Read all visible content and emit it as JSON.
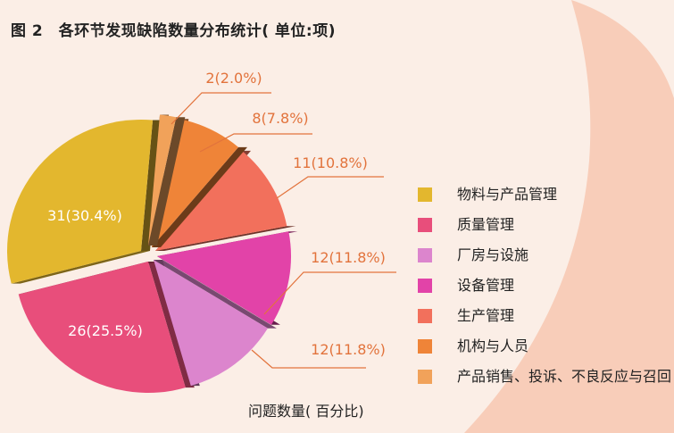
{
  "header": {
    "title": "图 2　各环节发现缺陷数量分布统计( 单位:项)"
  },
  "caption": "问题数量( 百分比)",
  "colors": {
    "background": "#fbeee6",
    "blob": "#f7c4ae",
    "label": "#e2733c",
    "inside_label": "#ffffff"
  },
  "chart_data": {
    "type": "pie",
    "title": "图 2　各环节发现缺陷数量分布统计( 单位:项)",
    "xlabel": "问题数量( 百分比)",
    "legend_position": "right",
    "slices": [
      {
        "name": "物料与产品管理",
        "value": 31,
        "label": "31(30.4%)",
        "color": "#e3b72e"
      },
      {
        "name": "质量管理",
        "value": 26,
        "label": "26(25.5%)",
        "color": "#e84e7b"
      },
      {
        "name": "厂房与设施",
        "value": 12,
        "label": "12(11.8%)",
        "color": "#dc85cd"
      },
      {
        "name": "设备管理",
        "value": 12,
        "label": "12(11.8%)",
        "color": "#e243a8"
      },
      {
        "name": "生产管理",
        "value": 11,
        "label": "11(10.8%)",
        "color": "#f2705c"
      },
      {
        "name": "机构与人员",
        "value": 8,
        "label": "8(7.8%)",
        "color": "#ef8438"
      },
      {
        "name": "产品销售、投诉、不良反应与召回",
        "value": 2,
        "label": "2(2.0%)",
        "color": "#f1a25a"
      }
    ]
  }
}
